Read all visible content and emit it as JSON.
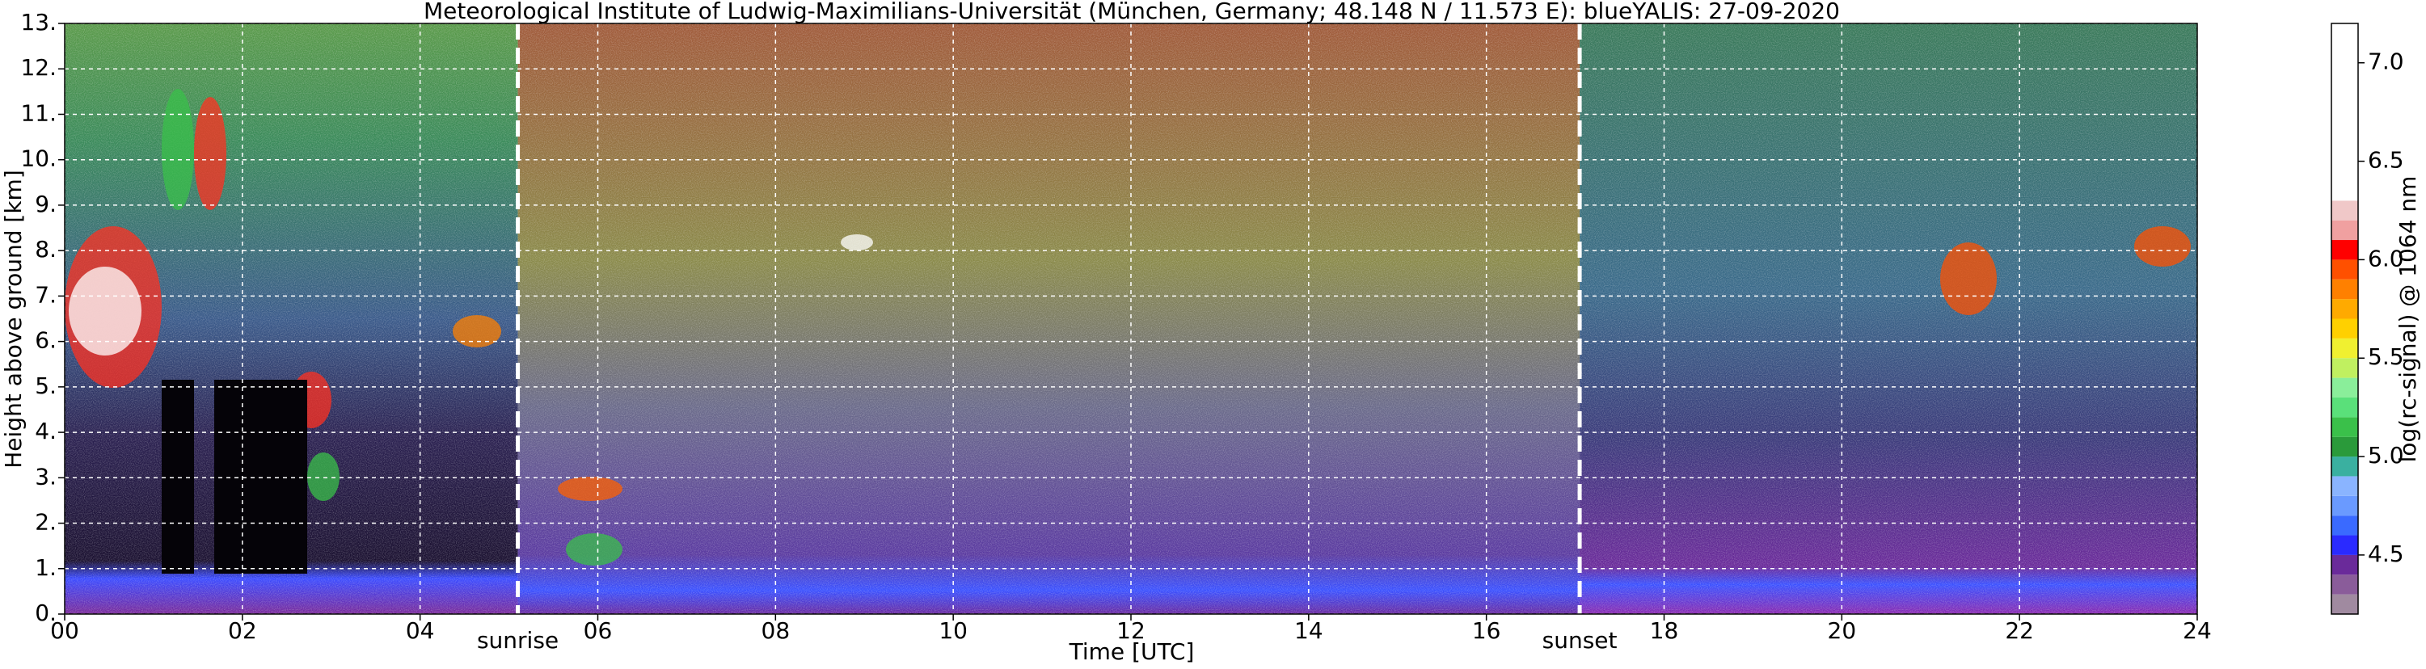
{
  "chart_data": {
    "type": "heatmap",
    "title": "Meteorological Institute of Ludwig-Maximilians-Universität (München, Germany; 48.148 N / 11.573 E):    blueYALIS: 27-09-2020",
    "xlabel": "Time [UTC]",
    "ylabel": "Height above ground [km]",
    "xlim": [
      0,
      24
    ],
    "xticks": [
      {
        "value": 0,
        "label": "00"
      },
      {
        "value": 2,
        "label": "02"
      },
      {
        "value": 4,
        "label": "04"
      },
      {
        "value": 6,
        "label": "06"
      },
      {
        "value": 8,
        "label": "08"
      },
      10,
      12,
      14,
      16,
      18,
      20,
      22,
      24
    ],
    "ylim": [
      0,
      13
    ],
    "yticks": [
      {
        "value": 0,
        "label": "0."
      },
      {
        "value": 1,
        "label": "1."
      },
      {
        "value": 2,
        "label": "2."
      },
      {
        "value": 3,
        "label": "3."
      },
      {
        "value": 4,
        "label": "4."
      },
      {
        "value": 5,
        "label": "5."
      },
      {
        "value": 6,
        "label": "6."
      },
      {
        "value": 7,
        "label": "7."
      },
      {
        "value": 8,
        "label": "8."
      },
      {
        "value": 9,
        "label": "9."
      },
      {
        "value": 10,
        "label": "10."
      },
      {
        "value": 11,
        "label": "11."
      },
      {
        "value": 12,
        "label": "12."
      },
      {
        "value": 13,
        "label": "13."
      }
    ],
    "grid": true,
    "annotations": [
      {
        "x": 5.1,
        "text": "sunrise"
      },
      {
        "x": 17.05,
        "text": "sunset"
      }
    ],
    "colorbar": {
      "label": "log(rc-signal) @ 1064 nm",
      "lim": [
        4.2,
        7.2
      ],
      "ticks": [
        4.5,
        {
          "value": 5.0,
          "label": "5.0"
        },
        5.5,
        {
          "value": 6.0,
          "label": "6.0"
        },
        6.5,
        {
          "value": 7.0,
          "label": "7.0"
        }
      ],
      "bounds": [
        4.2,
        4.3,
        4.4,
        4.5,
        4.6,
        4.7,
        4.8,
        4.9,
        5.0,
        5.1,
        5.2,
        5.3,
        5.4,
        5.5,
        5.6,
        5.7,
        5.8,
        5.9,
        6.0,
        6.1,
        6.2,
        6.3,
        7.2
      ],
      "colors": [
        "#a08aa0",
        "#8a5c9a",
        "#6a2a9a",
        "#2a2aff",
        "#3a6aff",
        "#6a9aff",
        "#8ab4ff",
        "#3ab0a0",
        "#2a9a3a",
        "#3ac04a",
        "#5ae07a",
        "#8aee9a",
        "#c0f060",
        "#f0f030",
        "#ffd000",
        "#ffaa00",
        "#ff8000",
        "#ff5000",
        "#ff0000",
        "#f0a0a0",
        "#f0c8c8",
        "#ffffff"
      ]
    }
  }
}
